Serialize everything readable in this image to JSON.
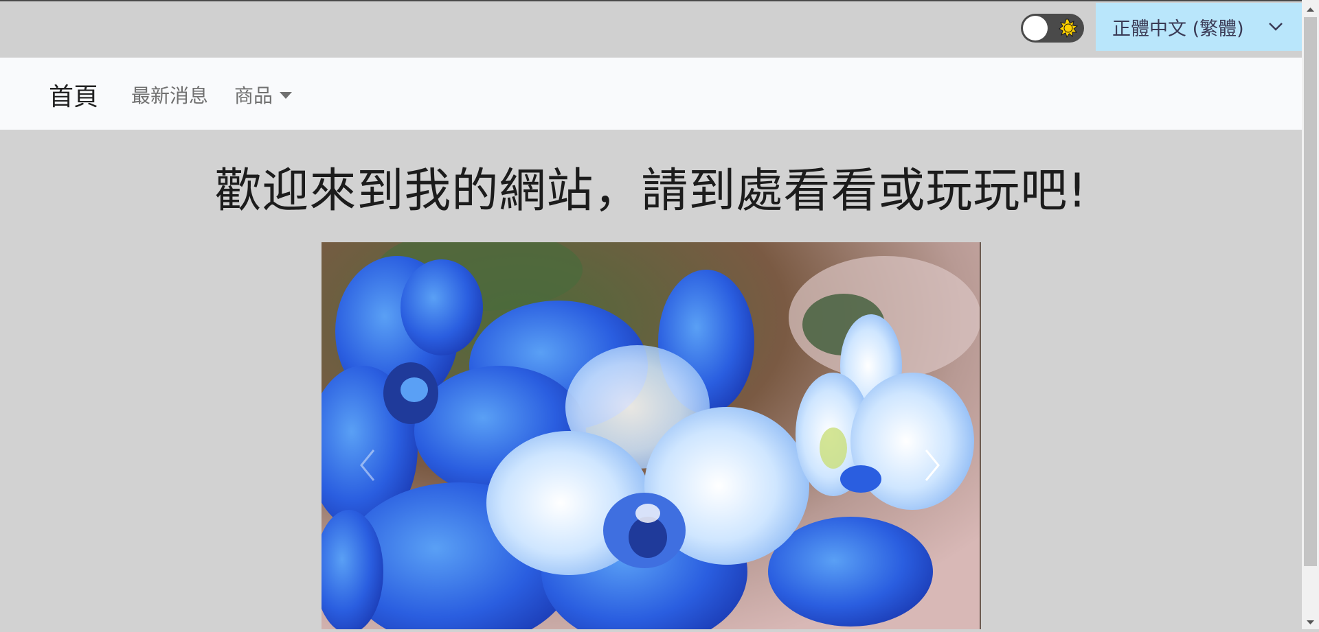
{
  "header": {
    "theme_toggle": {
      "state": "light",
      "icon": "sun-icon"
    },
    "language": {
      "selected": "正體中文 (繁體)",
      "icon": "chevron-down-icon"
    }
  },
  "navbar": {
    "brand": "首頁",
    "links": [
      {
        "label": "最新消息"
      },
      {
        "label": "商品",
        "icon": "caret-down-icon"
      }
    ]
  },
  "main": {
    "headline": "歡迎來到我的網站，請到處看看或玩玩吧!",
    "carousel": {
      "slide_description": "blue-orchids-photo",
      "prev_icon": "chevron-left-icon",
      "next_icon": "chevron-right-icon"
    }
  },
  "colors": {
    "page_bg": "#d2d2d2",
    "navbar_bg": "#f9fafc",
    "language_bg": "#b9e6fb",
    "toggle_bg": "#4a4a4a",
    "sun": "#ffd000"
  }
}
